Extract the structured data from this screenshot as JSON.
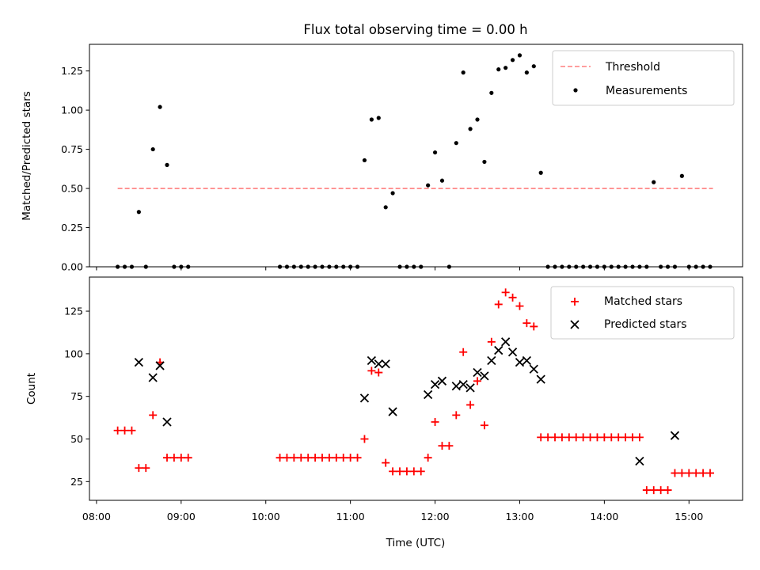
{
  "title": "Flux total observing time = 0.00 h",
  "colors": {
    "threshold": "#ff7f7f",
    "measurement": "#000000",
    "matched": "#ff0000",
    "predicted": "#000000"
  },
  "chart_data": [
    {
      "type": "scatter",
      "ylabel": "Matched/Predicted stars",
      "xlabel": "",
      "xlim": [
        "07:55",
        "15:38"
      ],
      "ylim": [
        0,
        1.42
      ],
      "xticks": [
        "08:00",
        "09:00",
        "10:00",
        "11:00",
        "12:00",
        "13:00",
        "14:00",
        "15:00"
      ],
      "yticks": [
        "0.00",
        "0.25",
        "0.50",
        "0.75",
        "1.00",
        "1.25"
      ],
      "xtick_labels_visible": false,
      "grid": false,
      "legend_position": "upper right",
      "series": [
        {
          "name": "Threshold",
          "style": "dashed-line",
          "x": [
            "08:15",
            "15:17"
          ],
          "y": [
            0.5,
            0.5
          ]
        },
        {
          "name": "Measurements",
          "style": "dot",
          "x": [
            "08:15",
            "08:20",
            "08:25",
            "08:30",
            "08:35",
            "08:40",
            "08:45",
            "08:50",
            "08:55",
            "09:00",
            "09:05",
            "10:10",
            "10:15",
            "10:20",
            "10:25",
            "10:30",
            "10:35",
            "10:40",
            "10:45",
            "10:50",
            "10:55",
            "11:00",
            "11:05",
            "11:10",
            "11:15",
            "11:20",
            "11:25",
            "11:30",
            "11:35",
            "11:40",
            "11:45",
            "11:50",
            "11:55",
            "12:00",
            "12:05",
            "12:10",
            "12:15",
            "12:20",
            "12:25",
            "12:30",
            "12:35",
            "12:40",
            "12:45",
            "12:50",
            "12:55",
            "13:00",
            "13:05",
            "13:10",
            "13:15",
            "13:20",
            "13:25",
            "13:30",
            "13:35",
            "13:40",
            "13:45",
            "13:50",
            "13:55",
            "14:00",
            "14:05",
            "14:10",
            "14:15",
            "14:20",
            "14:25",
            "14:30",
            "14:35",
            "14:40",
            "14:45",
            "14:50",
            "14:55",
            "15:00",
            "15:05",
            "15:10",
            "15:15"
          ],
          "y": [
            0,
            0,
            0,
            0.35,
            0,
            0.75,
            1.02,
            0.65,
            0,
            0,
            0,
            0,
            0,
            0,
            0,
            0,
            0,
            0,
            0,
            0,
            0,
            0,
            0,
            0.68,
            0.94,
            0.95,
            0.38,
            0.47,
            0,
            0,
            0,
            0,
            0.52,
            0.73,
            0.55,
            0,
            0.79,
            1.24,
            0.88,
            0.94,
            0.67,
            1.11,
            1.26,
            1.27,
            1.32,
            1.35,
            1.24,
            1.28,
            0.6,
            0,
            0,
            0,
            0,
            0,
            0,
            0,
            0,
            0,
            0,
            0,
            0,
            0,
            0,
            0,
            0.54,
            0,
            0,
            0,
            0.58,
            0,
            0,
            0,
            0
          ]
        }
      ]
    },
    {
      "type": "scatter",
      "ylabel": "Count",
      "xlabel": "Time (UTC)",
      "xlim": [
        "07:55",
        "15:38"
      ],
      "ylim": [
        14,
        145
      ],
      "xticks": [
        "08:00",
        "09:00",
        "10:00",
        "11:00",
        "12:00",
        "13:00",
        "14:00",
        "15:00"
      ],
      "yticks": [
        "25",
        "50",
        "75",
        "100",
        "125"
      ],
      "grid": false,
      "legend_position": "upper right",
      "series": [
        {
          "name": "Matched stars",
          "marker": "plus",
          "x": [
            "08:15",
            "08:20",
            "08:25",
            "08:30",
            "08:35",
            "08:40",
            "08:45",
            "08:50",
            "08:55",
            "09:00",
            "09:05",
            "10:10",
            "10:15",
            "10:20",
            "10:25",
            "10:30",
            "10:35",
            "10:40",
            "10:45",
            "10:50",
            "10:55",
            "11:00",
            "11:05",
            "11:10",
            "11:15",
            "11:20",
            "11:25",
            "11:30",
            "11:35",
            "11:40",
            "11:45",
            "11:50",
            "11:55",
            "12:00",
            "12:05",
            "12:10",
            "12:15",
            "12:20",
            "12:25",
            "12:30",
            "12:35",
            "12:40",
            "12:45",
            "12:50",
            "12:55",
            "13:00",
            "13:05",
            "13:10",
            "13:15",
            "13:20",
            "13:25",
            "13:30",
            "13:35",
            "13:40",
            "13:45",
            "13:50",
            "13:55",
            "14:00",
            "14:05",
            "14:10",
            "14:15",
            "14:20",
            "14:25",
            "14:30",
            "14:35",
            "14:40",
            "14:45",
            "14:50",
            "14:55",
            "15:00",
            "15:05",
            "15:10",
            "15:15"
          ],
          "y": [
            55,
            55,
            55,
            33,
            33,
            64,
            95,
            39,
            39,
            39,
            39,
            39,
            39,
            39,
            39,
            39,
            39,
            39,
            39,
            39,
            39,
            39,
            39,
            50,
            90,
            89,
            36,
            31,
            31,
            31,
            31,
            31,
            39,
            60,
            46,
            46,
            64,
            101,
            70,
            84,
            58,
            107,
            129,
            136,
            133,
            128,
            118,
            116,
            51,
            51,
            51,
            51,
            51,
            51,
            51,
            51,
            51,
            51,
            51,
            51,
            51,
            51,
            51,
            20,
            20,
            20,
            20,
            30,
            30,
            30,
            30,
            30,
            30
          ]
        },
        {
          "name": "Predicted stars",
          "marker": "x",
          "x": [
            "08:30",
            "08:40",
            "08:45",
            "08:50",
            "11:10",
            "11:15",
            "11:20",
            "11:25",
            "11:30",
            "11:55",
            "12:00",
            "12:05",
            "12:15",
            "12:20",
            "12:25",
            "12:30",
            "12:35",
            "12:40",
            "12:45",
            "12:50",
            "12:55",
            "13:00",
            "13:05",
            "13:10",
            "13:15",
            "14:25",
            "14:50"
          ],
          "y": [
            95,
            86,
            93,
            60,
            74,
            96,
            94,
            94,
            66,
            76,
            82,
            84,
            81,
            82,
            80,
            89,
            87,
            96,
            102,
            107,
            101,
            95,
            96,
            91,
            85,
            37,
            52
          ]
        }
      ]
    }
  ]
}
